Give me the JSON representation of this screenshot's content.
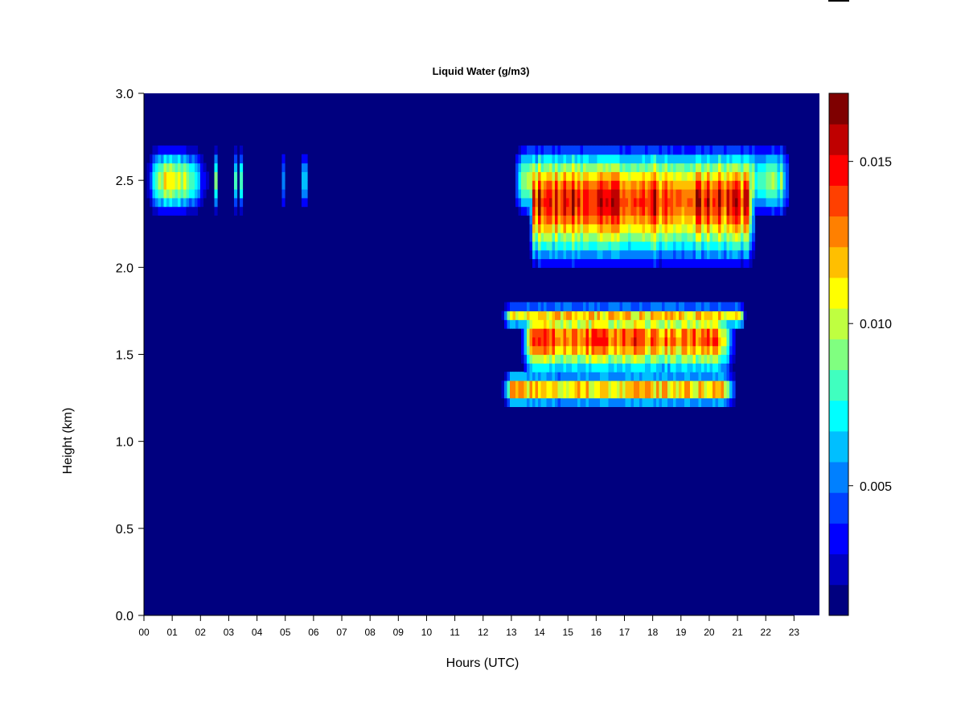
{
  "chart_data": {
    "type": "heatmap",
    "title": "Liquid Water (g/m3)",
    "xlabel": "Hours (UTC)",
    "ylabel": "Height (km)",
    "xlim": [
      0,
      23.9
    ],
    "ylim": [
      0,
      3.0
    ],
    "x_ticks": [
      "00",
      "01",
      "02",
      "03",
      "04",
      "05",
      "06",
      "07",
      "08",
      "09",
      "10",
      "11",
      "12",
      "13",
      "14",
      "15",
      "16",
      "17",
      "18",
      "19",
      "20",
      "21",
      "22",
      "23"
    ],
    "y_ticks": [
      "0.0",
      "0.5",
      "1.0",
      "1.5",
      "2.0",
      "2.5",
      "3.0"
    ],
    "background_value": 0.0,
    "colorbar": {
      "range": [
        0.001,
        0.0171
      ],
      "tick_labels": [
        "0.005",
        "0.010",
        "0.015"
      ],
      "tick_values": [
        0.005,
        0.01,
        0.015
      ],
      "colors": [
        "#00007F",
        "#0000BF",
        "#0000FF",
        "#0040FF",
        "#0080FF",
        "#00BFFF",
        "#00FFFF",
        "#40FFBF",
        "#80FF80",
        "#BFFF40",
        "#FFFF00",
        "#FFBF00",
        "#FF8000",
        "#FF4000",
        "#FF0000",
        "#BF0000",
        "#7F0000"
      ]
    },
    "layers": [
      {
        "hours": [
          0.0,
          0.6,
          1.5,
          2.4
        ],
        "center_km": 2.5,
        "half_thickness_km": 0.2,
        "peak_value": 0.0105,
        "peak_height_km": 2.5
      },
      {
        "hours": [
          2.4,
          3.5
        ],
        "center_km": 2.5,
        "half_thickness_km": 0.2,
        "peak_value": 0.008,
        "peak_height_km": 2.5,
        "intermittent": true
      },
      {
        "hours": [
          4.4,
          5.8
        ],
        "center_km": 2.5,
        "half_thickness_km": 0.18,
        "peak_value": 0.006,
        "peak_height_km": 2.5,
        "intermittent": true
      },
      {
        "hours": [
          13.0,
          13.4,
          22.6,
          22.9
        ],
        "center_km": 2.5,
        "half_thickness_km": 0.22,
        "peak_value": 0.009,
        "peak_height_km": 2.5
      },
      {
        "hours": [
          13.6,
          13.8,
          21.4,
          21.7
        ],
        "center_km": 2.35,
        "half_thickness_km": 0.35,
        "peak_value": 0.0148,
        "peak_height_km": 2.42
      },
      {
        "hours": [
          12.6,
          13.0,
          21.1,
          21.3
        ],
        "center_km": 1.72,
        "half_thickness_km": 0.07,
        "peak_value": 0.0115,
        "peak_height_km": 1.72
      },
      {
        "hours": [
          13.3,
          13.7,
          20.4,
          21.0
        ],
        "center_km": 1.55,
        "half_thickness_km": 0.2,
        "peak_value": 0.0145,
        "peak_height_km": 1.65
      },
      {
        "hours": [
          12.6,
          13.0,
          20.6,
          21.0
        ],
        "center_km": 1.3,
        "half_thickness_km": 0.1,
        "peak_value": 0.0125,
        "peak_height_km": 1.3
      }
    ]
  }
}
